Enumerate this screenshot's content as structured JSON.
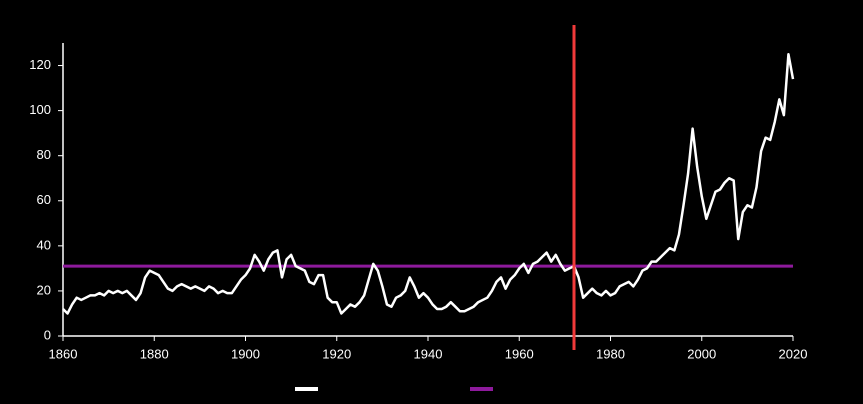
{
  "chart_data": {
    "type": "line",
    "series": [
      {
        "color": "#ffffff",
        "x": [
          1860,
          1861,
          1862,
          1863,
          1864,
          1865,
          1866,
          1867,
          1868,
          1869,
          1870,
          1871,
          1872,
          1873,
          1874,
          1875,
          1876,
          1877,
          1878,
          1879,
          1880,
          1881,
          1882,
          1883,
          1884,
          1885,
          1886,
          1887,
          1888,
          1889,
          1890,
          1891,
          1892,
          1893,
          1894,
          1895,
          1896,
          1897,
          1898,
          1899,
          1900,
          1901,
          1902,
          1903,
          1904,
          1905,
          1906,
          1907,
          1908,
          1909,
          1910,
          1911,
          1912,
          1913,
          1914,
          1915,
          1916,
          1917,
          1918,
          1919,
          1920,
          1921,
          1922,
          1923,
          1924,
          1925,
          1926,
          1927,
          1928,
          1929,
          1930,
          1931,
          1932,
          1933,
          1934,
          1935,
          1936,
          1937,
          1938,
          1939,
          1940,
          1941,
          1942,
          1943,
          1944,
          1945,
          1946,
          1947,
          1948,
          1949,
          1950,
          1951,
          1952,
          1953,
          1954,
          1955,
          1956,
          1957,
          1958,
          1959,
          1960,
          1961,
          1962,
          1963,
          1964,
          1965,
          1966,
          1967,
          1968,
          1969,
          1970,
          1971,
          1972,
          1973,
          1974,
          1975,
          1976,
          1977,
          1978,
          1979,
          1980,
          1981,
          1982,
          1983,
          1984,
          1985,
          1986,
          1987,
          1988,
          1989,
          1990,
          1991,
          1992,
          1993,
          1994,
          1995,
          1996,
          1997,
          1998,
          1999,
          2000,
          2001,
          2002,
          2003,
          2004,
          2005,
          2006,
          2007,
          2008,
          2009,
          2010,
          2011,
          2012,
          2013,
          2014,
          2015,
          2016,
          2017,
          2018,
          2019,
          2020
        ],
        "values": [
          12,
          10,
          14,
          17,
          16,
          17,
          18,
          18,
          19,
          18,
          20,
          19,
          20,
          19,
          20,
          18,
          16,
          19,
          26,
          29,
          28,
          27,
          24,
          21,
          20,
          22,
          23,
          22,
          21,
          22,
          21,
          20,
          22,
          21,
          19,
          20,
          19,
          19,
          22,
          25,
          27,
          30,
          36,
          33,
          29,
          34,
          37,
          38,
          26,
          34,
          36,
          31,
          30,
          29,
          24,
          23,
          27,
          27,
          17,
          15,
          15,
          10,
          12,
          14,
          13,
          15,
          18,
          25,
          32,
          29,
          22,
          14,
          13,
          17,
          18,
          20,
          26,
          22,
          17,
          19,
          17,
          14,
          12,
          12,
          13,
          15,
          13,
          11,
          11,
          12,
          13,
          15,
          16,
          17,
          20,
          24,
          26,
          21,
          25,
          27,
          30,
          32,
          28,
          32,
          33,
          35,
          37,
          33,
          36,
          32,
          29,
          30,
          31,
          26,
          17,
          19,
          21,
          19,
          18,
          20,
          18,
          19,
          22,
          23,
          24,
          22,
          25,
          29,
          30,
          33,
          33,
          35,
          37,
          39,
          38,
          45,
          58,
          72,
          92,
          75,
          62,
          52,
          58,
          64,
          65,
          68,
          70,
          69,
          43,
          55,
          58,
          57,
          66,
          82,
          88,
          87,
          95,
          105,
          98,
          125,
          114
        ]
      },
      {
        "color": "#8e1a9c",
        "x": [
          1860,
          2020
        ],
        "values": [
          31,
          31
        ]
      }
    ],
    "vline": {
      "value": 1972,
      "color": "#f03a3a"
    },
    "xlim": [
      1860,
      2020
    ],
    "xticks": [
      1860,
      1880,
      1900,
      1920,
      1940,
      1960,
      1980,
      2000,
      2020
    ],
    "ylim": [
      0,
      130
    ],
    "yticks": [
      0,
      20,
      40,
      60,
      80,
      100,
      120
    ]
  }
}
